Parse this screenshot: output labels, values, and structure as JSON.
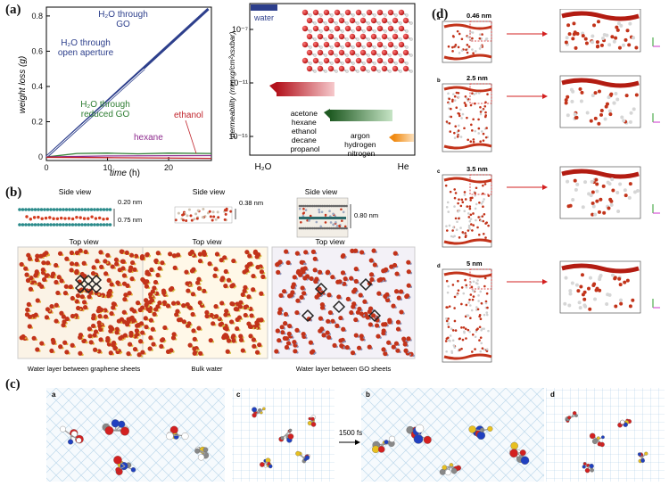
{
  "panels": {
    "a": {
      "label": "(a)",
      "ylabel": "weight loss (g)",
      "xlabel": "time",
      "xunit": "(h)",
      "yticks": [
        "0",
        "0.2",
        "0.4",
        "0.6",
        "0.8"
      ],
      "xticks": [
        "0",
        "10",
        "20"
      ],
      "curve_labels": {
        "go": [
          "H₂O through",
          "GO"
        ],
        "open": [
          "H₂O through",
          "open aperture"
        ],
        "rgo": [
          "H₂O through",
          "reduced GO"
        ],
        "hexane": "hexane",
        "ethanol": "ethanol"
      },
      "chart_data": {
        "type": "line",
        "xlabel": "time (h)",
        "ylabel": "weight loss (g)",
        "xlim": [
          0,
          27
        ],
        "ylim": [
          -0.02,
          0.85
        ],
        "series": [
          {
            "name": "H2O through GO",
            "color": "#2d3f8c",
            "x": [
              0,
              26.5
            ],
            "y": [
              0,
              0.84
            ]
          },
          {
            "name": "H2O through open aperture",
            "color": "#2d3f8c",
            "x": [
              0,
              16
            ],
            "y": [
              0,
              0.5
            ]
          },
          {
            "name": "H2O through reduced GO",
            "color": "#2e7d32",
            "x": [
              0,
              5,
              10,
              15,
              20,
              27
            ],
            "y": [
              0.0,
              0.02,
              0.022,
              0.018,
              0.022,
              0.02
            ]
          },
          {
            "name": "hexane",
            "color": "#8e2b8e",
            "x": [
              0,
              10,
              20,
              27
            ],
            "y": [
              0.0,
              0.006,
              0.007,
              0.008
            ]
          },
          {
            "name": "ethanol",
            "color": "#c0232b",
            "x": [
              0,
              10,
              20,
              27
            ],
            "y": [
              -0.002,
              -0.004,
              -0.006,
              -0.008
            ]
          }
        ]
      },
      "perm": {
        "ylabel": "permeability  (mmxg/cm²xsxbar)",
        "yticks": [
          "10⁻⁷",
          "10⁻¹¹",
          "10⁻¹⁵"
        ],
        "xticks": [
          "H₂O",
          "He"
        ],
        "water_label": "water",
        "organics": [
          "acetone",
          "hexane",
          "ethanol",
          "decane",
          "propanol"
        ],
        "gases": [
          "argon",
          "hydrogen",
          "nitrogen"
        ],
        "bar_colors": {
          "water": "#2d3f8c",
          "organics": "#c0232b",
          "gases": "#2e6b2e",
          "helium": "#f0901e"
        }
      }
    },
    "b": {
      "label": "(b)",
      "side_view": "Side view",
      "top_view": "Top view",
      "dims": {
        "g1": "0.20 nm",
        "g2": "0.75 nm",
        "bulk": "0.38 nm",
        "go": "0.80 nm"
      },
      "captions": [
        "Water layer between  graphene sheets",
        "Bulk water",
        "Water layer  between  GO sheets"
      ]
    },
    "c": {
      "label": "(c)",
      "sub": [
        "a",
        "c",
        "b",
        "d"
      ],
      "arrow_label": "1500 fs"
    },
    "d": {
      "label": "(d)",
      "sub": [
        "a",
        "b",
        "c",
        "d"
      ],
      "spacings": [
        "0.46 nm",
        "2.5 nm",
        "3.5 nm",
        "5 nm"
      ]
    }
  }
}
